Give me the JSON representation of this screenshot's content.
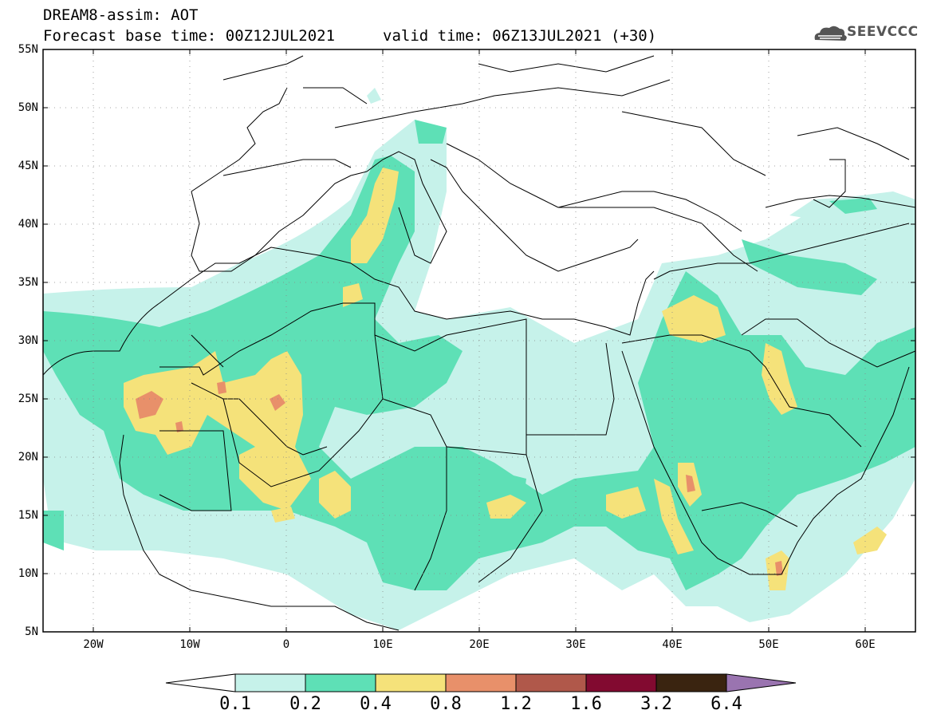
{
  "title": {
    "line1": "DREAM8-assim: AOT",
    "line2": "Forecast base time: 00Z12JUL2021",
    "valid": "valid time: 06Z13JUL2021 (+30)"
  },
  "logo": {
    "text": "SEEVCCC",
    "icon": "cloud-icon",
    "color": "#555555"
  },
  "axes": {
    "lat_labels": [
      "55N",
      "50N",
      "45N",
      "40N",
      "35N",
      "30N",
      "25N",
      "20N",
      "15N",
      "10N",
      "5N"
    ],
    "lon_labels": [
      "20W",
      "10W",
      "0",
      "10E",
      "20E",
      "30E",
      "40E",
      "50E",
      "60E"
    ],
    "lat_range": [
      5,
      55
    ],
    "lon_range": [
      -25,
      65
    ]
  },
  "legend": {
    "labels": [
      "0.1",
      "0.2",
      "0.4",
      "0.8",
      "1.2",
      "1.6",
      "3.2",
      "6.4"
    ],
    "colors": [
      "#ffffff",
      "#c6f2ea",
      "#5ee0b6",
      "#f5e27a",
      "#e8906a",
      "#b0584a",
      "#820a30",
      "#3a2410",
      "#9a74b0"
    ]
  },
  "fields": {
    "aot_0_1": "#c6f2ea",
    "aot_0_2": "#5ee0b6",
    "aot_0_4": "#f5e27a",
    "aot_0_8": "#e8906a",
    "aot_1_2": "#b0584a"
  }
}
